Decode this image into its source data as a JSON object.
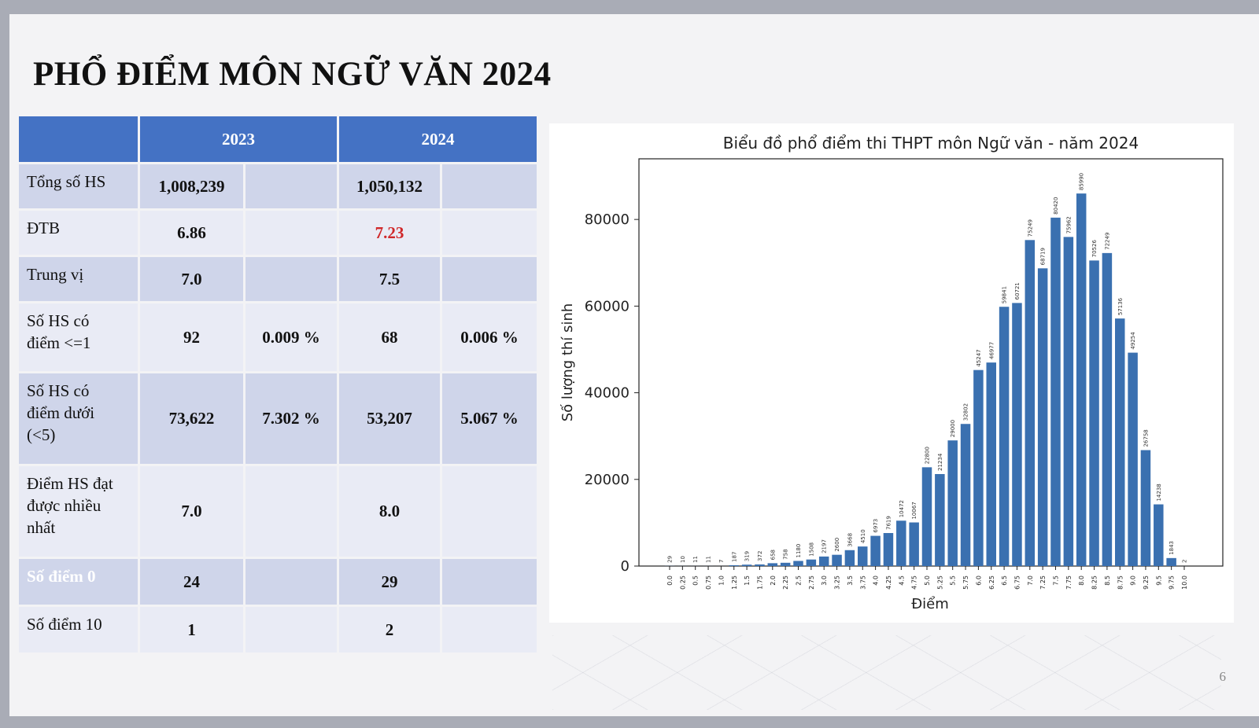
{
  "slide": {
    "title": "PHỔ ĐIỂM MÔN NGỮ VĂN 2024",
    "page_number": "6"
  },
  "table": {
    "header": [
      "",
      "2023",
      "2024"
    ],
    "rows": [
      {
        "label": "Tổng số HS",
        "c2023": "1,008,239",
        "p2023": "",
        "c2024": "1,050,132",
        "p2024": "",
        "shade": "dark"
      },
      {
        "label": "ĐTB",
        "c2023": "6.86",
        "p2023": "",
        "c2024": "7.23",
        "p2024": "",
        "shade": "light",
        "highlight_2024": true
      },
      {
        "label": "Trung vị",
        "c2023": "7.0",
        "p2023": "",
        "c2024": "7.5",
        "p2024": "",
        "shade": "dark"
      },
      {
        "label": "Số HS có\nđiểm <=1",
        "c2023": "92",
        "p2023": "0.009 %",
        "c2024": "68",
        "p2024": "0.006 %",
        "shade": "light"
      },
      {
        "label": "Số HS có\nđiểm dưới\n(<5)",
        "c2023": "73,622",
        "p2023": "7.302 %",
        "c2024": "53,207",
        "p2024": "5.067 %",
        "shade": "dark"
      },
      {
        "label": "Điểm HS đạt\nđược nhiều\nnhất",
        "c2023": "7.0",
        "p2023": "",
        "c2024": "8.0",
        "p2024": "",
        "shade": "light"
      },
      {
        "label": "Số điểm 0",
        "c2023": "24",
        "p2023": "",
        "c2024": "29",
        "p2024": "",
        "shade": "dark",
        "label_white": true
      },
      {
        "label": "Số điểm 10",
        "c2023": "1",
        "p2023": "",
        "c2024": "2",
        "p2024": "",
        "shade": "light",
        "label_white": true
      }
    ]
  },
  "colors": {
    "header_blue": "#4472c4",
    "row_dark": "#cfd5ea",
    "row_light": "#e9ebf5",
    "highlight_red": "#d0282a",
    "bar_blue": "#3a70b0"
  },
  "chart_data": {
    "type": "bar",
    "title": "Biểu đồ phổ điểm thi THPT môn Ngữ văn - năm 2024",
    "xlabel": "Điểm",
    "ylabel": "Số lượng thí sinh",
    "ylim": [
      0,
      94000
    ],
    "yticks": [
      "0",
      "20000",
      "40000",
      "60000",
      "80000"
    ],
    "grid": false,
    "categories": [
      "0.0",
      "0.25",
      "0.5",
      "0.75",
      "1.0",
      "1.25",
      "1.5",
      "1.75",
      "2.0",
      "2.25",
      "2.5",
      "2.75",
      "3.0",
      "3.25",
      "3.5",
      "3.75",
      "4.0",
      "4.25",
      "4.5",
      "4.75",
      "5.0",
      "5.25",
      "5.5",
      "5.75",
      "6.0",
      "6.25",
      "6.5",
      "6.75",
      "7.0",
      "7.25",
      "7.5",
      "7.75",
      "8.0",
      "8.25",
      "8.5",
      "8.75",
      "9.0",
      "9.25",
      "9.5",
      "9.75",
      "10.0"
    ],
    "values": [
      29,
      10,
      11,
      11,
      7,
      187,
      319,
      372,
      658,
      758,
      1180,
      1508,
      2197,
      2600,
      3668,
      4510,
      6973,
      7619,
      10472,
      10067,
      22800,
      21234,
      29000,
      32802,
      45247,
      46977,
      59841,
      60721,
      75249,
      68719,
      80420,
      75962,
      85990,
      70526,
      72249,
      57136,
      49254,
      26758,
      14238,
      1843,
      2
    ],
    "data_labels": [
      "29",
      "10",
      "11",
      "11",
      "7",
      "187",
      "319",
      "372",
      "658",
      "758",
      "1180",
      "1508",
      "2197",
      "2600",
      "3668",
      "4510",
      "6973",
      "7619",
      "10472",
      "10067",
      "22800",
      "21234",
      "29000",
      "32802",
      "45247",
      "46977",
      "59841",
      "60721",
      "75249",
      "68719",
      "80420",
      "75962",
      "85990",
      "70526",
      "72249",
      "57136",
      "49254",
      "26758",
      "14238",
      "1843",
      "2"
    ]
  }
}
